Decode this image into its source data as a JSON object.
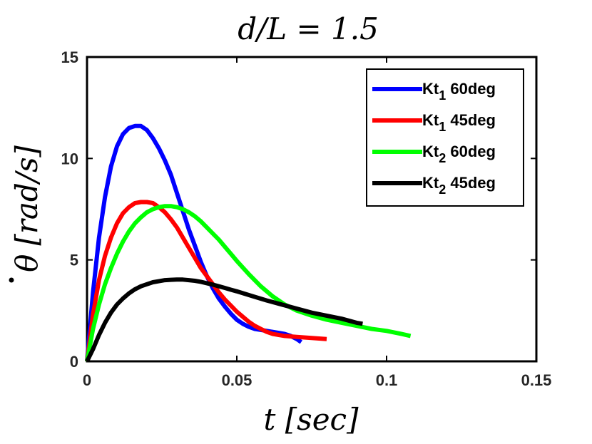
{
  "chart_data": {
    "type": "line",
    "title": "d/L = 1.5",
    "xlabel": "t [sec]",
    "ylabel_symbol": "θ",
    "ylabel_units": "[rad/s]",
    "xlim": [
      0,
      0.15
    ],
    "ylim": [
      0,
      15
    ],
    "xticks": [
      {
        "value": 0,
        "label": "0"
      },
      {
        "value": 0.05,
        "label": "0.05"
      },
      {
        "value": 0.1,
        "label": "0.1"
      },
      {
        "value": 0.15,
        "label": "0.15"
      }
    ],
    "yticks": [
      {
        "value": 0,
        "label": "0"
      },
      {
        "value": 5,
        "label": "5"
      },
      {
        "value": 10,
        "label": "10"
      },
      {
        "value": 15,
        "label": "15"
      }
    ],
    "legend_position": "top-right",
    "series": [
      {
        "name": "Kt1 60deg",
        "legend_base": "Kt",
        "legend_sub": "1",
        "legend_suffix": " 60deg",
        "color": "#0000ff",
        "points": [
          [
            0,
            0
          ],
          [
            0.002,
            3.4
          ],
          [
            0.004,
            6.1
          ],
          [
            0.006,
            8.1
          ],
          [
            0.008,
            9.6
          ],
          [
            0.01,
            10.6
          ],
          [
            0.012,
            11.2
          ],
          [
            0.014,
            11.5
          ],
          [
            0.016,
            11.6
          ],
          [
            0.018,
            11.6
          ],
          [
            0.02,
            11.4
          ],
          [
            0.022,
            11.0
          ],
          [
            0.024,
            10.5
          ],
          [
            0.026,
            9.9
          ],
          [
            0.028,
            9.2
          ],
          [
            0.03,
            8.3
          ],
          [
            0.032,
            7.4
          ],
          [
            0.034,
            6.5
          ],
          [
            0.036,
            5.7
          ],
          [
            0.038,
            4.9
          ],
          [
            0.04,
            4.2
          ],
          [
            0.042,
            3.6
          ],
          [
            0.044,
            3.1
          ],
          [
            0.046,
            2.7
          ],
          [
            0.048,
            2.35
          ],
          [
            0.05,
            2.05
          ],
          [
            0.052,
            1.85
          ],
          [
            0.054,
            1.7
          ],
          [
            0.056,
            1.6
          ],
          [
            0.058,
            1.55
          ],
          [
            0.06,
            1.5
          ],
          [
            0.062,
            1.45
          ],
          [
            0.064,
            1.4
          ],
          [
            0.066,
            1.35
          ],
          [
            0.068,
            1.25
          ],
          [
            0.07,
            1.1
          ],
          [
            0.0715,
            0.95
          ]
        ]
      },
      {
        "name": "Kt1 45deg",
        "legend_base": "Kt",
        "legend_sub": "1",
        "legend_suffix": " 45deg",
        "color": "#ff0000",
        "points": [
          [
            0,
            0
          ],
          [
            0.002,
            2.3
          ],
          [
            0.004,
            4.0
          ],
          [
            0.006,
            5.2
          ],
          [
            0.008,
            6.1
          ],
          [
            0.01,
            6.8
          ],
          [
            0.012,
            7.3
          ],
          [
            0.014,
            7.6
          ],
          [
            0.016,
            7.8
          ],
          [
            0.018,
            7.85
          ],
          [
            0.02,
            7.85
          ],
          [
            0.022,
            7.8
          ],
          [
            0.024,
            7.6
          ],
          [
            0.026,
            7.35
          ],
          [
            0.028,
            7.0
          ],
          [
            0.03,
            6.6
          ],
          [
            0.032,
            6.1
          ],
          [
            0.034,
            5.6
          ],
          [
            0.036,
            5.1
          ],
          [
            0.038,
            4.6
          ],
          [
            0.04,
            4.2
          ],
          [
            0.042,
            3.8
          ],
          [
            0.044,
            3.4
          ],
          [
            0.046,
            3.05
          ],
          [
            0.048,
            2.75
          ],
          [
            0.05,
            2.45
          ],
          [
            0.052,
            2.2
          ],
          [
            0.054,
            1.95
          ],
          [
            0.056,
            1.75
          ],
          [
            0.058,
            1.6
          ],
          [
            0.06,
            1.45
          ],
          [
            0.062,
            1.35
          ],
          [
            0.064,
            1.3
          ],
          [
            0.066,
            1.25
          ],
          [
            0.07,
            1.2
          ],
          [
            0.075,
            1.15
          ],
          [
            0.08,
            1.1
          ]
        ]
      },
      {
        "name": "Kt2 60deg",
        "legend_base": "Kt",
        "legend_sub": "2",
        "legend_suffix": " 60deg",
        "color": "#00ff00",
        "points": [
          [
            0,
            0
          ],
          [
            0.002,
            1.6
          ],
          [
            0.004,
            2.8
          ],
          [
            0.006,
            3.8
          ],
          [
            0.008,
            4.6
          ],
          [
            0.01,
            5.3
          ],
          [
            0.012,
            5.9
          ],
          [
            0.014,
            6.4
          ],
          [
            0.016,
            6.8
          ],
          [
            0.018,
            7.1
          ],
          [
            0.02,
            7.35
          ],
          [
            0.022,
            7.5
          ],
          [
            0.024,
            7.6
          ],
          [
            0.026,
            7.65
          ],
          [
            0.028,
            7.65
          ],
          [
            0.03,
            7.6
          ],
          [
            0.032,
            7.5
          ],
          [
            0.034,
            7.35
          ],
          [
            0.036,
            7.15
          ],
          [
            0.038,
            6.9
          ],
          [
            0.04,
            6.6
          ],
          [
            0.042,
            6.3
          ],
          [
            0.044,
            6.0
          ],
          [
            0.046,
            5.65
          ],
          [
            0.048,
            5.3
          ],
          [
            0.05,
            4.95
          ],
          [
            0.054,
            4.3
          ],
          [
            0.058,
            3.7
          ],
          [
            0.062,
            3.2
          ],
          [
            0.066,
            2.8
          ],
          [
            0.07,
            2.5
          ],
          [
            0.075,
            2.25
          ],
          [
            0.08,
            2.05
          ],
          [
            0.085,
            1.9
          ],
          [
            0.09,
            1.75
          ],
          [
            0.095,
            1.6
          ],
          [
            0.1,
            1.5
          ],
          [
            0.105,
            1.35
          ],
          [
            0.108,
            1.25
          ]
        ]
      },
      {
        "name": "Kt2 45deg",
        "legend_base": "Kt",
        "legend_sub": "2",
        "legend_suffix": " 45deg",
        "color": "#000000",
        "points": [
          [
            0,
            0
          ],
          [
            0.002,
            0.6
          ],
          [
            0.004,
            1.3
          ],
          [
            0.006,
            1.9
          ],
          [
            0.008,
            2.4
          ],
          [
            0.01,
            2.8
          ],
          [
            0.012,
            3.1
          ],
          [
            0.014,
            3.35
          ],
          [
            0.016,
            3.55
          ],
          [
            0.018,
            3.7
          ],
          [
            0.02,
            3.8
          ],
          [
            0.022,
            3.9
          ],
          [
            0.024,
            3.95
          ],
          [
            0.026,
            4.0
          ],
          [
            0.028,
            4.02
          ],
          [
            0.03,
            4.03
          ],
          [
            0.032,
            4.03
          ],
          [
            0.034,
            4.0
          ],
          [
            0.036,
            3.97
          ],
          [
            0.038,
            3.92
          ],
          [
            0.04,
            3.85
          ],
          [
            0.042,
            3.78
          ],
          [
            0.044,
            3.7
          ],
          [
            0.046,
            3.62
          ],
          [
            0.048,
            3.53
          ],
          [
            0.05,
            3.45
          ],
          [
            0.055,
            3.22
          ],
          [
            0.06,
            3.0
          ],
          [
            0.065,
            2.8
          ],
          [
            0.07,
            2.6
          ],
          [
            0.075,
            2.4
          ],
          [
            0.08,
            2.25
          ],
          [
            0.085,
            2.1
          ],
          [
            0.09,
            1.9
          ],
          [
            0.092,
            1.85
          ]
        ]
      }
    ]
  }
}
